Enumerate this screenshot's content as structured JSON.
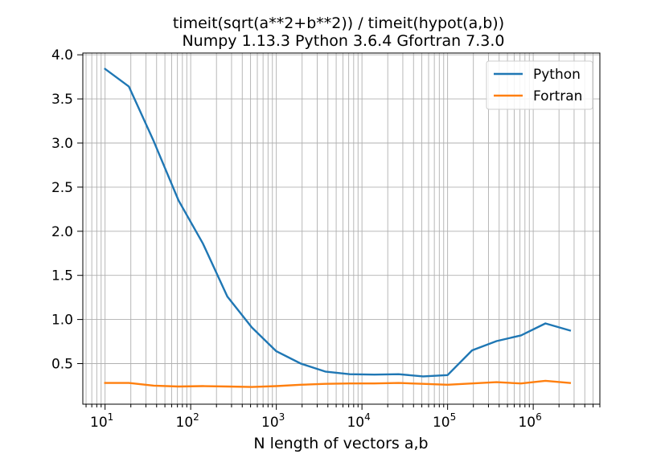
{
  "chart_data": {
    "type": "line",
    "title": "timeit(sqrt(a**2+b**2)) / timeit(hypot(a,b))",
    "subtitle": "Numpy 1.13.3 Python 3.6.4 Gfortran 7.3.0",
    "xlabel": "N length of vectors a,b",
    "ylabel": "",
    "xscale": "log",
    "xlim": [
      5.5,
      6000000
    ],
    "ylim": [
      0.04,
      4.02
    ],
    "x_ticks": [
      {
        "value": 10,
        "base": "10",
        "exp": "1"
      },
      {
        "value": 100,
        "base": "10",
        "exp": "2"
      },
      {
        "value": 1000,
        "base": "10",
        "exp": "3"
      },
      {
        "value": 10000,
        "base": "10",
        "exp": "4"
      },
      {
        "value": 100000,
        "base": "10",
        "exp": "5"
      },
      {
        "value": 1000000,
        "base": "10",
        "exp": "6"
      }
    ],
    "y_ticks": [
      {
        "value": 0.5,
        "label": "0.5"
      },
      {
        "value": 1.0,
        "label": "1.0"
      },
      {
        "value": 1.5,
        "label": "1.5"
      },
      {
        "value": 2.0,
        "label": "2.0"
      },
      {
        "value": 2.5,
        "label": "2.5"
      },
      {
        "value": 3.0,
        "label": "3.0"
      },
      {
        "value": 3.5,
        "label": "3.5"
      },
      {
        "value": 4.0,
        "label": "4.0"
      }
    ],
    "grid": "both-major-and-minor",
    "legend_position": "top-right",
    "x": [
      10,
      19,
      37,
      72,
      139,
      268,
      518,
      1000,
      1931,
      3728,
      7197,
      13895,
      26827,
      51795,
      100000,
      193070,
      372759,
      719686,
      1389495,
      2682696
    ],
    "series": [
      {
        "name": "Python",
        "color": "#1f77b4",
        "values": [
          3.84,
          3.64,
          3.02,
          2.35,
          1.86,
          1.26,
          0.91,
          0.64,
          0.5,
          0.41,
          0.38,
          0.375,
          0.38,
          0.355,
          0.37,
          0.65,
          0.755,
          0.82,
          0.955,
          0.875
        ]
      },
      {
        "name": "Fortran",
        "color": "#ff7f0e",
        "values": [
          0.28,
          0.28,
          0.25,
          0.24,
          0.245,
          0.24,
          0.235,
          0.245,
          0.26,
          0.27,
          0.275,
          0.275,
          0.28,
          0.27,
          0.26,
          0.275,
          0.29,
          0.275,
          0.305,
          0.28
        ]
      }
    ]
  }
}
